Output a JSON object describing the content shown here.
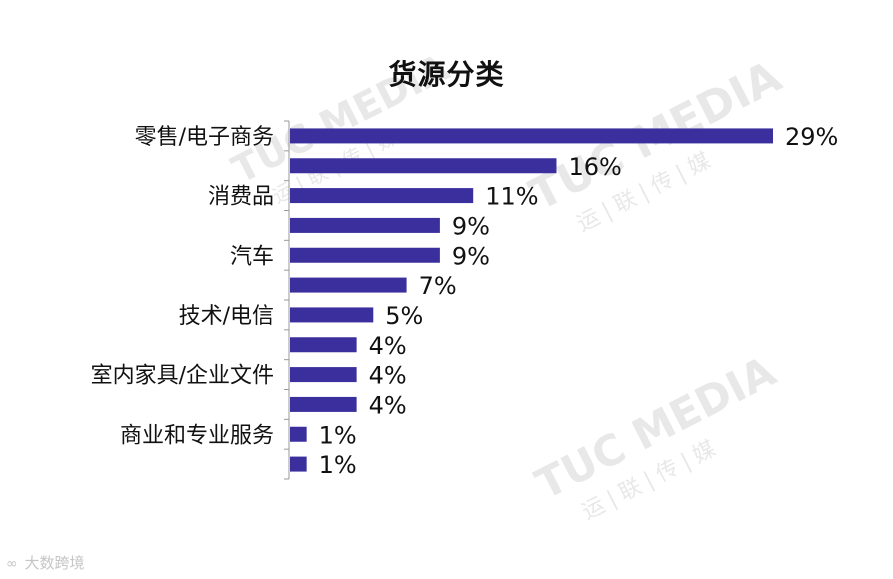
{
  "watermark": {
    "brand": "TUC MEDIA",
    "sub": "运|联|传|媒",
    "logo_mark": "∞",
    "logo_text": "大数跨境"
  },
  "chart_data": {
    "type": "bar",
    "orientation": "horizontal",
    "title": "货源分类",
    "categories": [
      "零售/电子商务",
      "",
      "消费品",
      "",
      "汽车",
      "",
      "技术/电信",
      "",
      "室内家具/企业文件",
      "",
      "商业和专业服务",
      ""
    ],
    "values": [
      29,
      16,
      11,
      9,
      9,
      7,
      5,
      4,
      4,
      4,
      1,
      1
    ],
    "value_labels": [
      "29%",
      "16%",
      "11%",
      "9%",
      "9%",
      "7%",
      "5%",
      "4%",
      "4%",
      "4%",
      "1%",
      "1%"
    ],
    "xlim": [
      0,
      29
    ],
    "grid": false,
    "legend": "none",
    "bar_color": "#3b2f9e",
    "axis_color": "#9a9a9a"
  }
}
